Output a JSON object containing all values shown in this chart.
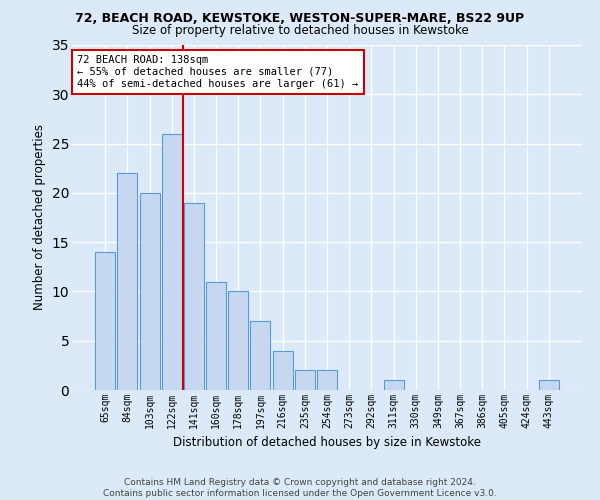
{
  "title1": "72, BEACH ROAD, KEWSTOKE, WESTON-SUPER-MARE, BS22 9UP",
  "title2": "Size of property relative to detached houses in Kewstoke",
  "xlabel": "Distribution of detached houses by size in Kewstoke",
  "ylabel": "Number of detached properties",
  "categories": [
    "65sqm",
    "84sqm",
    "103sqm",
    "122sqm",
    "141sqm",
    "160sqm",
    "178sqm",
    "197sqm",
    "216sqm",
    "235sqm",
    "254sqm",
    "273sqm",
    "292sqm",
    "311sqm",
    "330sqm",
    "349sqm",
    "367sqm",
    "386sqm",
    "405sqm",
    "424sqm",
    "443sqm"
  ],
  "values": [
    14,
    22,
    20,
    26,
    19,
    11,
    10,
    7,
    4,
    2,
    2,
    0,
    0,
    1,
    0,
    0,
    0,
    0,
    0,
    0,
    1
  ],
  "bar_color": "#c5d8f0",
  "bar_edge_color": "#5b9bd5",
  "vline_index": 3.5,
  "vline_color": "#cc0000",
  "annotation_text": "72 BEACH ROAD: 138sqm\n← 55% of detached houses are smaller (77)\n44% of semi-detached houses are larger (61) →",
  "annotation_box_color": "#ffffff",
  "annotation_box_edge": "#cc0000",
  "ylim": [
    0,
    35
  ],
  "yticks": [
    0,
    5,
    10,
    15,
    20,
    25,
    30,
    35
  ],
  "footer1": "Contains HM Land Registry data © Crown copyright and database right 2024.",
  "footer2": "Contains public sector information licensed under the Open Government Licence v3.0.",
  "bg_color": "#dce9f8",
  "grid_color": "#ffffff"
}
